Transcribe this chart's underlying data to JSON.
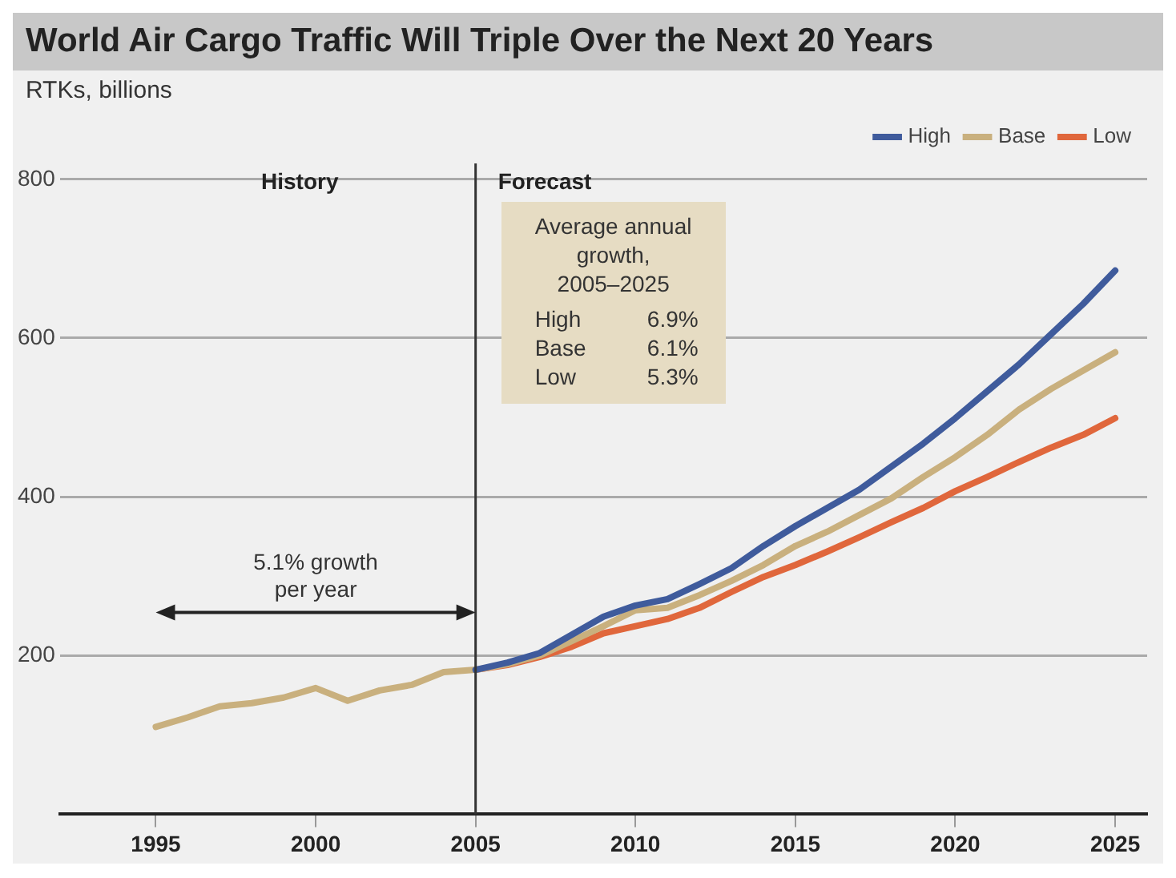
{
  "chart_data": {
    "type": "line",
    "title": "World Air Cargo Traffic Will Triple Over the Next 20 Years",
    "ylabel": "RTKs, billions",
    "xlim": [
      1992,
      2026
    ],
    "xticks": [
      1995,
      2000,
      2005,
      2010,
      2015,
      2020,
      2025
    ],
    "ylim": [
      0,
      820
    ],
    "yticks": [
      200,
      400,
      600,
      800
    ],
    "grid": "y",
    "legend": "top right",
    "line_style": "solid",
    "marker": "none",
    "series": [
      {
        "name": "High",
        "color": "#3f5b9c",
        "x": [
          2005,
          2006,
          2007,
          2008,
          2009,
          2010,
          2011,
          2012,
          2013,
          2014,
          2015,
          2016,
          2017,
          2018,
          2019,
          2020,
          2021,
          2022,
          2023,
          2024,
          2025
        ],
        "values": [
          182,
          191,
          203,
          226,
          249,
          263,
          271,
          290,
          310,
          338,
          363,
          386,
          409,
          438,
          467,
          499,
          533,
          567,
          605,
          643,
          685
        ]
      },
      {
        "name": "Base",
        "color": "#c9b07e",
        "x": [
          1995,
          1996,
          1997,
          1998,
          1999,
          2000,
          2001,
          2002,
          2003,
          2004,
          2005,
          2006,
          2007,
          2008,
          2009,
          2010,
          2011,
          2012,
          2013,
          2014,
          2015,
          2016,
          2017,
          2018,
          2019,
          2020,
          2021,
          2022,
          2023,
          2024,
          2025
        ],
        "values": [
          110,
          122,
          136,
          140,
          147,
          159,
          143,
          156,
          163,
          179,
          182,
          189,
          200,
          218,
          237,
          257,
          260,
          276,
          294,
          314,
          338,
          356,
          377,
          398,
          425,
          450,
          478,
          510,
          536,
          559,
          582
        ]
      },
      {
        "name": "Low",
        "color": "#e0673c",
        "x": [
          2005,
          2006,
          2007,
          2008,
          2009,
          2010,
          2011,
          2012,
          2013,
          2014,
          2015,
          2016,
          2017,
          2018,
          2019,
          2020,
          2021,
          2022,
          2023,
          2024,
          2025
        ],
        "values": [
          182,
          188,
          198,
          211,
          228,
          237,
          246,
          260,
          280,
          299,
          314,
          331,
          349,
          368,
          386,
          407,
          425,
          444,
          462,
          478,
          499
        ]
      }
    ],
    "ref_lines": [
      {
        "axis": "x",
        "value": 2005,
        "color": "#333333"
      }
    ],
    "annotations": [
      "History",
      "Forecast",
      "Average annual\ngrowth,\n2005–2025",
      "High\t6.9%",
      "Base\t6.1%",
      "Low\t5.3%",
      "5.1% growth\nper year"
    ]
  }
}
